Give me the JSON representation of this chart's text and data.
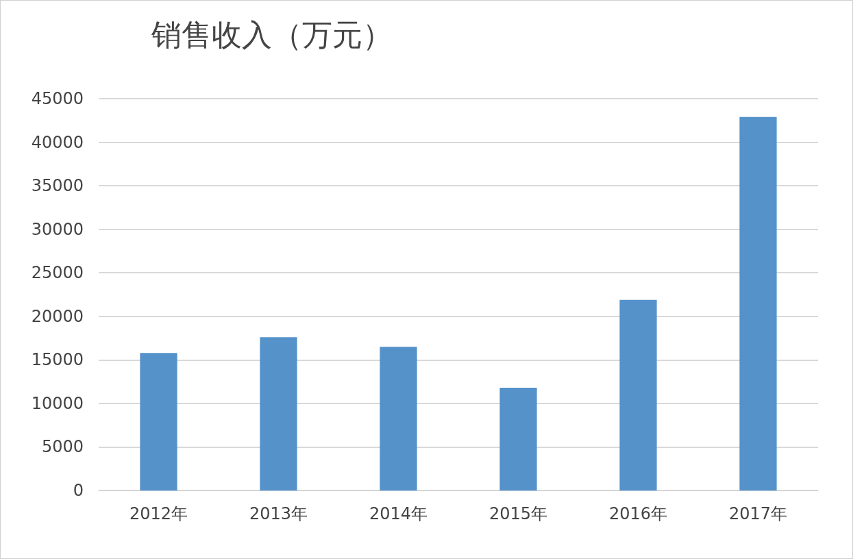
{
  "chart_data": {
    "type": "bar",
    "title": "销售收入（万元）",
    "categories": [
      "2012年",
      "2013年",
      "2014年",
      "2015年",
      "2016年",
      "2017年"
    ],
    "values": [
      15800,
      17600,
      16500,
      11800,
      21900,
      42900
    ],
    "color": "#5592c9",
    "ylim": [
      0,
      45000
    ],
    "yticks": [
      0,
      5000,
      10000,
      15000,
      20000,
      25000,
      30000,
      35000,
      40000,
      45000
    ],
    "grid": "y"
  }
}
